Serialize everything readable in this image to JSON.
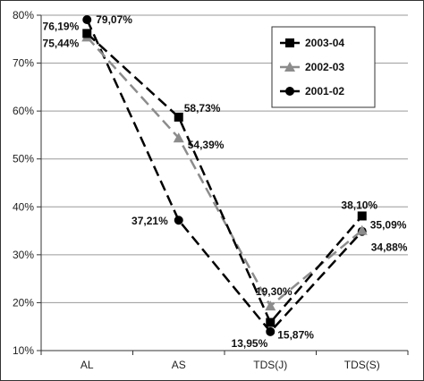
{
  "chart_data": {
    "type": "line",
    "categories": [
      "AL",
      "AS",
      "TDS(J)",
      "TDS(S)"
    ],
    "ylim": [
      10,
      80
    ],
    "yticks": [
      "10%",
      "20%",
      "30%",
      "40%",
      "50%",
      "60%",
      "70%",
      "80%"
    ],
    "grid": true,
    "legend_position": "top-right",
    "series": [
      {
        "name": "2003-04",
        "values": [
          76.19,
          58.73,
          15.87,
          38.1
        ],
        "labels": [
          "76,19%",
          "58,73%",
          "15,87%",
          "38,10%"
        ],
        "color": "#000000",
        "marker": "square"
      },
      {
        "name": "2002-03",
        "values": [
          75.44,
          54.39,
          19.3,
          35.09
        ],
        "labels": [
          "75,44%",
          "54,39%",
          "19,30%",
          "35,09%"
        ],
        "color": "#8c8c8c",
        "marker": "triangle"
      },
      {
        "name": "2001-02",
        "values": [
          79.07,
          37.21,
          13.95,
          34.88
        ],
        "labels": [
          "79,07%",
          "37,21%",
          "13,95%",
          "34,88%"
        ],
        "color": "#000000",
        "marker": "circle"
      }
    ]
  }
}
